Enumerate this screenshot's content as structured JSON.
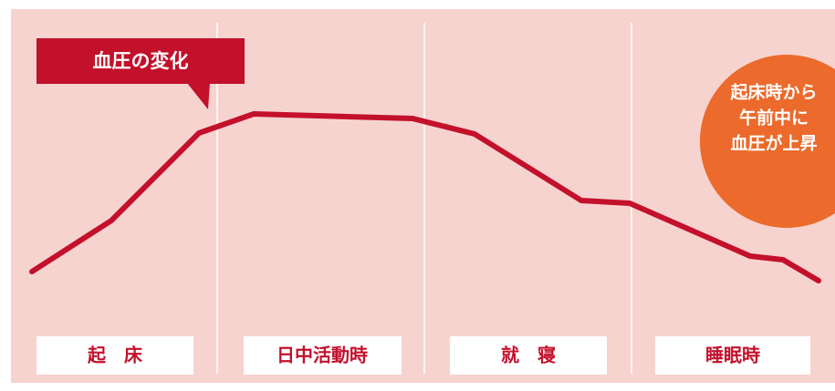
{
  "title": "血圧の変化",
  "callout": {
    "lines": [
      "起床時から",
      "午前中に",
      "血圧が上昇"
    ]
  },
  "phases": [
    "起　床",
    "日中活動時",
    "就　寝",
    "睡眠時"
  ]
}
